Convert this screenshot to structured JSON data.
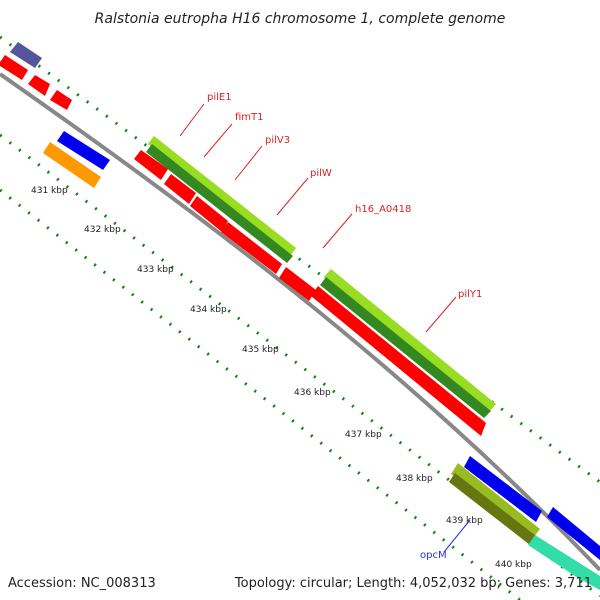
{
  "title": "Ralstonia eutropha H16 chromosome 1, complete genome",
  "accession": "Accession: NC_008313",
  "topology": "Topology: circular; Length: 4,052,032 bp; Genes: 3,711",
  "colors": {
    "backbone": "#999999",
    "tick": "#0a8a0a",
    "cds": "#ff0000",
    "cds_dark": "#cc0000",
    "gene": "#99dd22",
    "gene_dark": "#338822",
    "blue": "#0000ee",
    "purple": "#555599",
    "orange": "#ff9900",
    "teal": "#33ddaa",
    "label_red": "#dd2222",
    "label_blue": "#2233dd"
  },
  "ticks": [
    "431 kbp",
    "432 kbp",
    "433 kbp",
    "434 kbp",
    "435 kbp",
    "436 kbp",
    "437 kbp",
    "438 kbp",
    "439 kbp",
    "440 kbp"
  ],
  "gene_labels": [
    "pilE1",
    "fimT1",
    "pilV3",
    "pilW",
    "h16_A0418",
    "pilY1",
    "opcM"
  ]
}
